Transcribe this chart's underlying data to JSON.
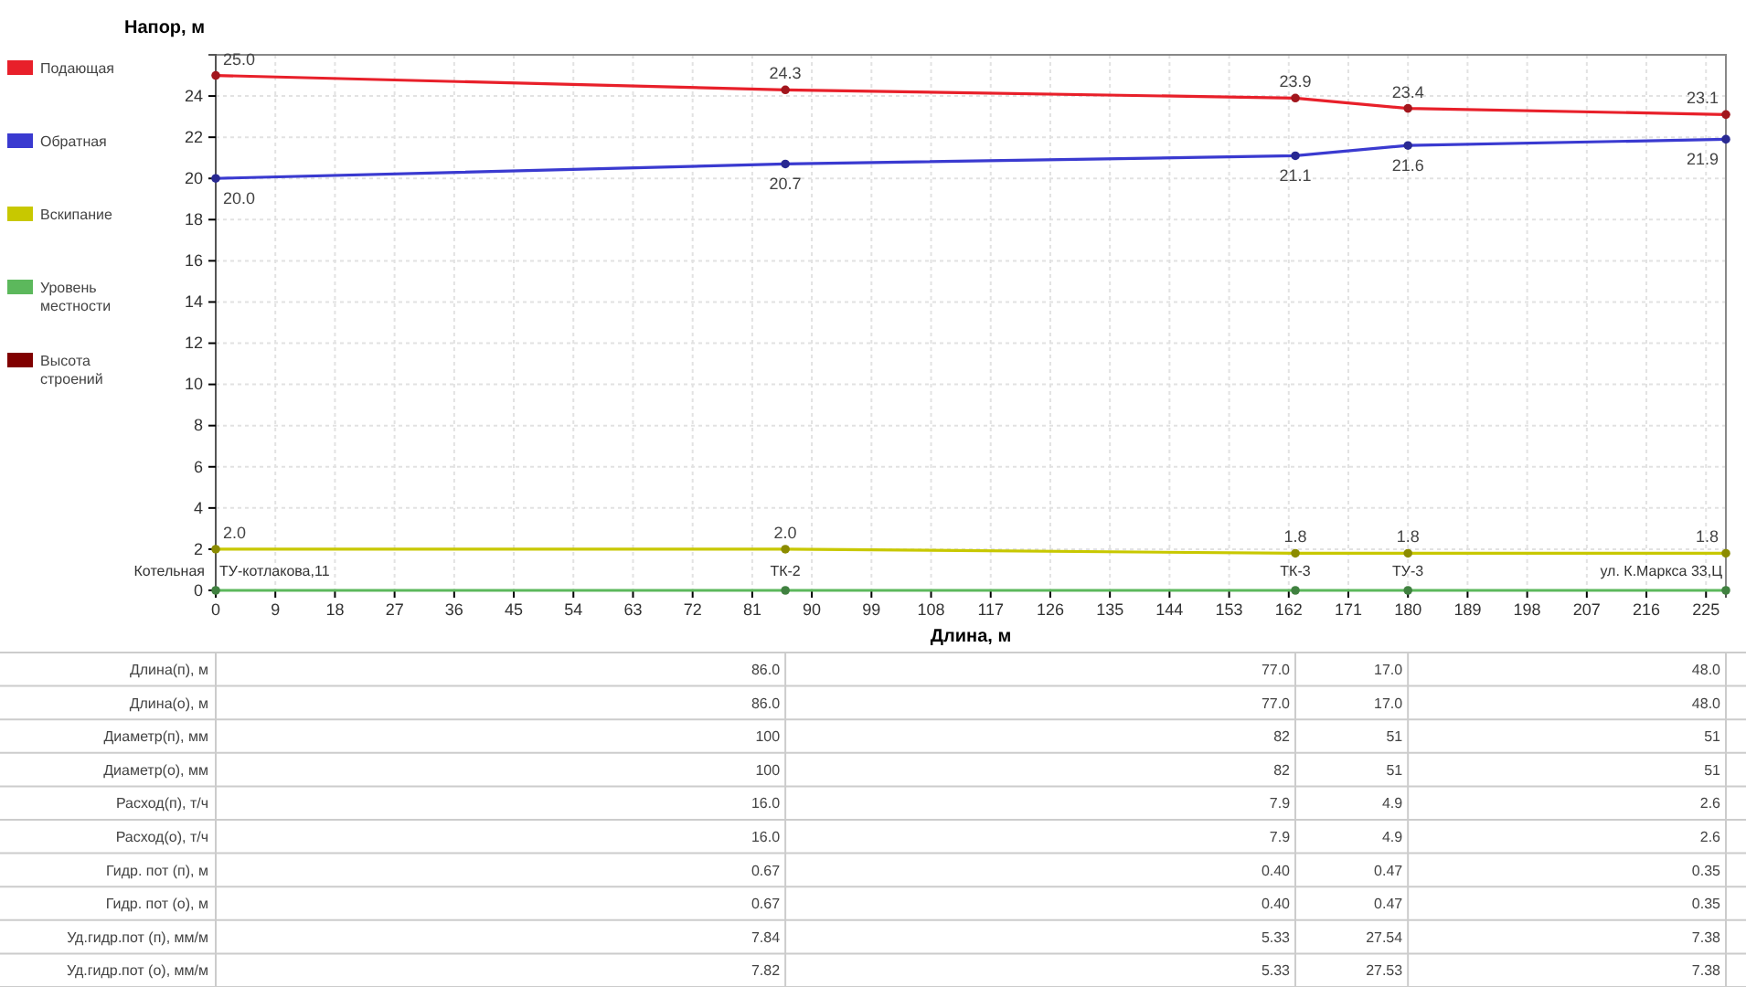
{
  "chart_data": [
    {
      "type": "line",
      "xlabel": "Длина, м",
      "ylabel": "Напор, м",
      "x": [
        0,
        86,
        163,
        180,
        228
      ],
      "series": [
        {
          "name": "Подающая",
          "color": "#e8202a",
          "values": [
            25.0,
            24.3,
            23.9,
            23.4,
            23.1
          ],
          "value_labels": [
            "25.0",
            "24.3",
            "23.9",
            "23.4",
            "23.1"
          ]
        },
        {
          "name": "Обратная",
          "color": "#3a3ad0",
          "values": [
            20.0,
            20.7,
            21.1,
            21.6,
            21.9
          ],
          "value_labels": [
            "20.0",
            "20.7",
            "21.1",
            "21.6",
            "21.9"
          ]
        },
        {
          "name": "Вскипание",
          "color": "#c8c800",
          "values": [
            2.0,
            2.0,
            1.8,
            1.8,
            1.8
          ],
          "value_labels": [
            "2.0",
            "2.0",
            "1.8",
            "1.8",
            "1.8"
          ]
        },
        {
          "name": "Уровень местности",
          "color": "#5cb85c",
          "values": [
            0,
            0,
            0,
            0,
            0
          ]
        },
        {
          "name": "Высота строений",
          "color": "#800000",
          "values": [
            null,
            null,
            null,
            null,
            null
          ]
        }
      ],
      "xlim": [
        0,
        228
      ],
      "xticks": [
        0,
        9,
        18,
        27,
        36,
        45,
        54,
        63,
        72,
        81,
        90,
        99,
        108,
        117,
        126,
        135,
        144,
        153,
        162,
        171,
        180,
        189,
        198,
        207,
        216,
        225
      ],
      "ylim": [
        0,
        26
      ],
      "yticks": [
        0,
        2,
        4,
        6,
        8,
        10,
        12,
        14,
        16,
        18,
        20,
        22,
        24
      ],
      "grid": true,
      "legend": "left",
      "marker": "circle",
      "annotations": [
        "Котельная",
        {
          "text": "ТУ-котлакова,11",
          "x": 0,
          "y": 0
        },
        {
          "text": "ТК-2",
          "x": 86,
          "y": 0
        },
        {
          "text": "ТК-3",
          "x": 163,
          "y": 0
        },
        {
          "text": "ТУ-3",
          "x": 180,
          "y": 0
        },
        {
          "text": "ул. К.Маркса 33,Ц",
          "x": 228,
          "y": 0
        }
      ]
    },
    {
      "type": "other",
      "annotations": [
        "Длина(п), м",
        "86.0",
        "77.0",
        "17.0",
        "48.0",
        "Длина(о), м",
        "86.0",
        "77.0",
        "17.0",
        "48.0",
        "Диаметр(п), мм",
        "100",
        "82",
        "51",
        "51",
        "Диаметр(о), мм",
        "100",
        "82",
        "51",
        "51",
        "Расход(п), т/ч",
        "16.0",
        "7.9",
        "4.9",
        "2.6",
        "Расход(о), т/ч",
        "16.0",
        "7.9",
        "4.9",
        "2.6",
        "Гидр. пот (п), м",
        "0.67",
        "0.40",
        "0.47",
        "0.35",
        "Гидр. пот (о), м",
        "0.67",
        "0.40",
        "0.47",
        "0.35",
        "Уд.гидр.пот (п), мм/м",
        "7.84",
        "5.33",
        "27.54",
        "7.38",
        "Уд.гидр.пот (о), мм/м",
        "7.82",
        "5.33",
        "27.53",
        "7.38"
      ]
    }
  ]
}
